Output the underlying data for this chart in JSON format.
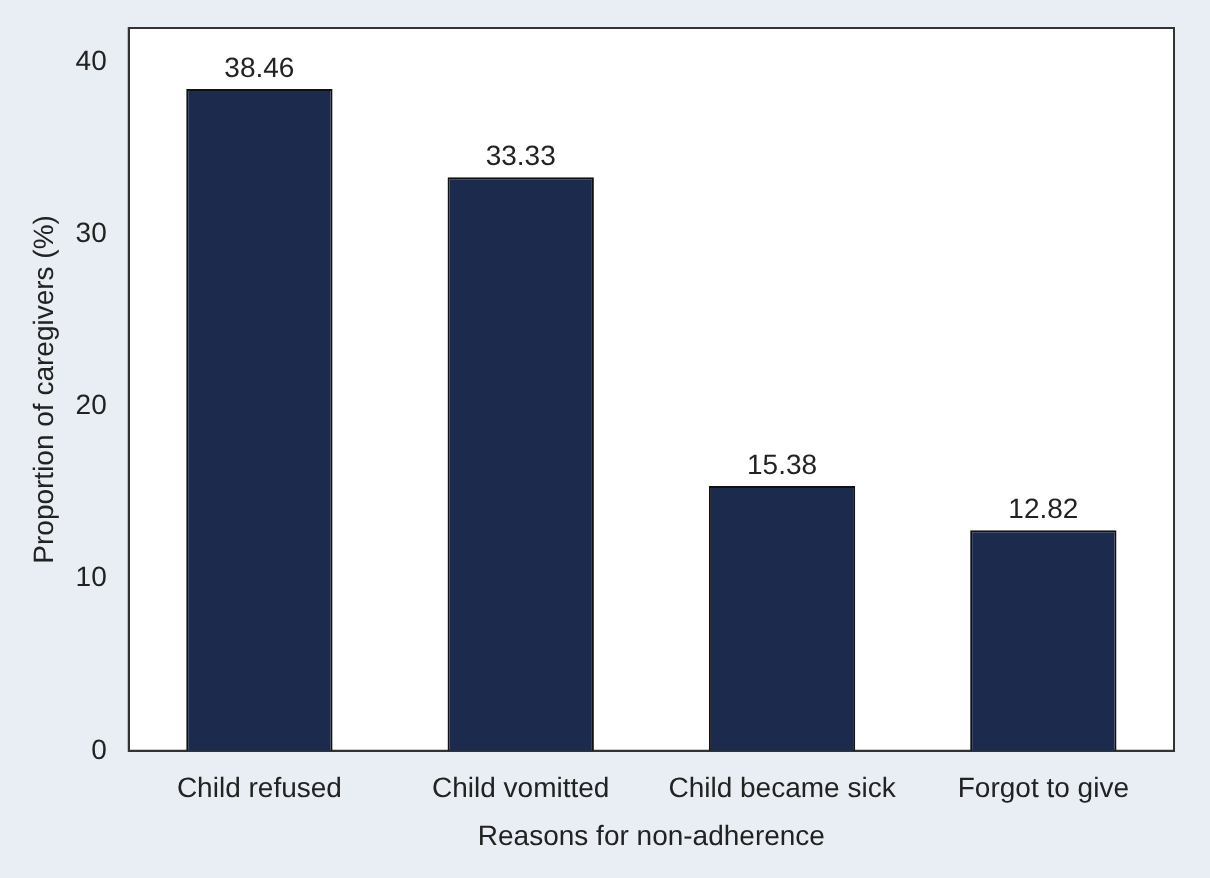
{
  "chart_data": {
    "type": "bar",
    "xlabel": "Reasons for non-adherence",
    "ylabel": "Proportion of caregivers (%)",
    "categories": [
      "Child refused",
      "Child vomitted",
      "Child became sick",
      "Forgot to give"
    ],
    "values": [
      38.46,
      33.33,
      15.38,
      12.82
    ],
    "color": "#1c2a4e",
    "ylim": [
      0,
      42
    ],
    "yticks": [
      0,
      10,
      20,
      30,
      40
    ],
    "grid": false,
    "legend": false,
    "data_labels": true
  }
}
